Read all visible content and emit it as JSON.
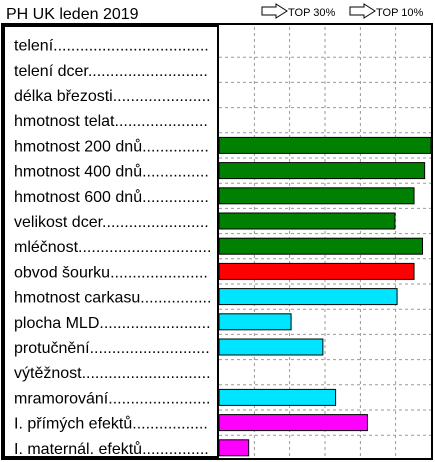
{
  "chart_data": {
    "type": "bar",
    "orientation": "horizontal",
    "title": "PH UK leden 2019",
    "legend": [
      "TOP 30%",
      "TOP 10%"
    ],
    "legend_placement": "top-right",
    "grid": true,
    "categories": [
      "telení",
      "telení dcer",
      "délka březosti",
      "hmotnost telat",
      "hmotnost 200 dnů",
      "hmotnost 400 dnů",
      "hmotnost 600 dnů",
      "velikost dcer",
      "mléčnost",
      "obvod šourku",
      "hmotnost carkasu",
      "plocha MLD",
      "protučnění",
      "výtěžnost",
      "mramorování",
      "I. přímých efektů",
      "I. maternál. efektů"
    ],
    "values": [
      null,
      null,
      null,
      null,
      100,
      97,
      92,
      83,
      96,
      92,
      84,
      34,
      49,
      null,
      55,
      70,
      14
    ],
    "colors": [
      null,
      null,
      null,
      null,
      "#008000",
      "#008000",
      "#008000",
      "#008000",
      "#008000",
      "#ff0000",
      "#00e5ff",
      "#00e5ff",
      "#00e5ff",
      null,
      "#00e5ff",
      "#ff00ff",
      "#ff00ff"
    ],
    "xlim": [
      0,
      100
    ],
    "tick_values": [
      16.7,
      33.3,
      50,
      66.7,
      83.3
    ]
  }
}
